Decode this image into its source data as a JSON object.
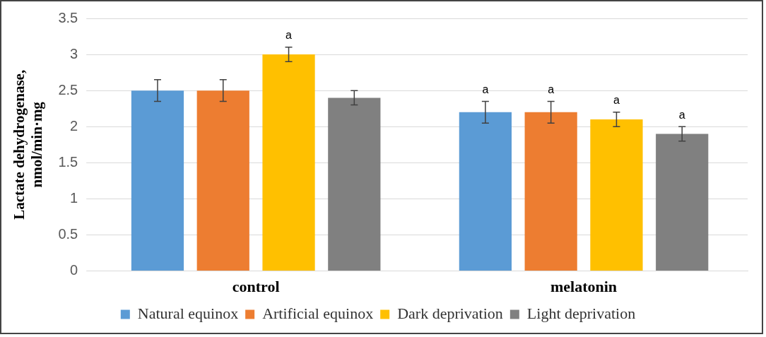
{
  "chart_data": {
    "type": "bar",
    "ylabel": "Lactate dehydrogenase, nmol/min·mg",
    "categories": [
      "control",
      "melatonin"
    ],
    "series": [
      {
        "name": "Natural equinox",
        "color": "#5b9bd5",
        "values": [
          2.5,
          2.2
        ],
        "errors": [
          0.15,
          0.15
        ],
        "value_labels": [
          null,
          "a"
        ]
      },
      {
        "name": "Artificial equinox",
        "color": "#ed7d31",
        "values": [
          2.5,
          2.2
        ],
        "errors": [
          0.15,
          0.15
        ],
        "value_labels": [
          null,
          "a"
        ]
      },
      {
        "name": "Dark deprivation",
        "color": "#ffc000",
        "values": [
          3.0,
          2.1
        ],
        "errors": [
          0.1,
          0.1
        ],
        "value_labels": [
          "a",
          "a"
        ]
      },
      {
        "name": "Light deprivation",
        "color": "#808080",
        "values": [
          2.4,
          1.9
        ],
        "errors": [
          0.1,
          0.1
        ],
        "value_labels": [
          null,
          "a"
        ]
      }
    ],
    "ylim": [
      0,
      3.5
    ],
    "yticks": [
      0,
      0.5,
      1,
      1.5,
      2,
      2.5,
      3,
      3.5
    ],
    "grid": "y",
    "legend": "bottom"
  }
}
